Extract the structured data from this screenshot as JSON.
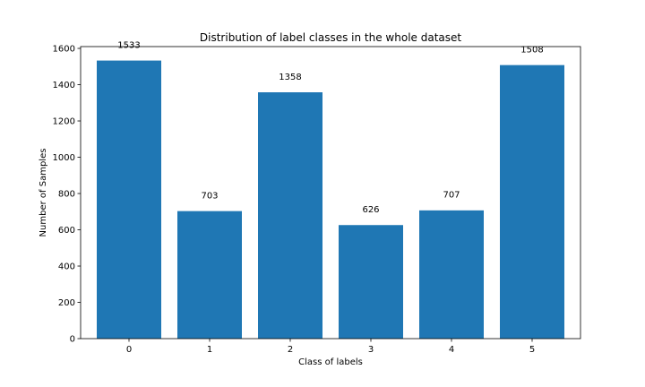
{
  "chart_data": {
    "type": "bar",
    "title": "Distribution of label classes in the whole dataset",
    "xlabel": "Class of labels",
    "ylabel": "Number of Samples",
    "categories": [
      "0",
      "1",
      "2",
      "3",
      "4",
      "5"
    ],
    "values": [
      1533,
      703,
      1358,
      626,
      707,
      1508
    ],
    "ylim": [
      0,
      1610
    ],
    "yticks": [
      0,
      200,
      400,
      600,
      800,
      1000,
      1200,
      1400,
      1600
    ],
    "grid": false,
    "bar_color": "#1f77b4",
    "data_labels": true
  }
}
